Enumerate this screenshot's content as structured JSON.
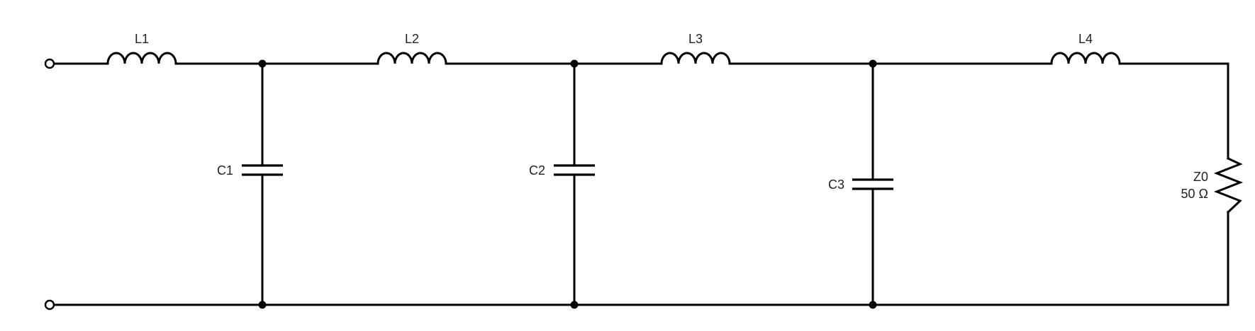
{
  "diagram": {
    "type": "LC ladder low-pass filter schematic",
    "inductors": [
      {
        "id": "l1",
        "label": "L1"
      },
      {
        "id": "l2",
        "label": "L2"
      },
      {
        "id": "l3",
        "label": "L3"
      },
      {
        "id": "l4",
        "label": "L4"
      }
    ],
    "capacitors": [
      {
        "id": "c1",
        "label": "C1"
      },
      {
        "id": "c2",
        "label": "C2"
      },
      {
        "id": "c3",
        "label": "C3"
      }
    ],
    "load": {
      "label": "Z0",
      "value": "50 Ω"
    },
    "colors": {
      "wire": "#000000",
      "text": "#222222",
      "background": "#ffffff"
    }
  }
}
